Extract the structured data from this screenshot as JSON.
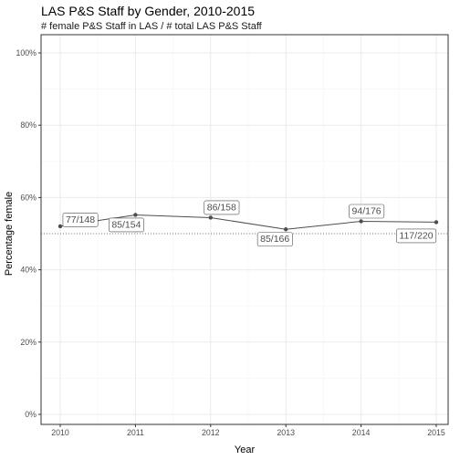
{
  "chart_data": {
    "type": "line",
    "title": "LAS P&S Staff by Gender, 2010-2015",
    "subtitle": "# female P&S Staff in LAS / # total LAS P&S Staff",
    "xlabel": "Year",
    "ylabel": "Percentage female",
    "x": [
      2010,
      2011,
      2012,
      2013,
      2014,
      2015
    ],
    "values": [
      0.5203,
      0.5519,
      0.5443,
      0.512,
      0.5341,
      0.5318
    ],
    "labels": [
      "77/148",
      "85/154",
      "86/158",
      "85/166",
      "94/176",
      "117/220"
    ],
    "x_ticks": [
      "2010",
      "2011",
      "2012",
      "2013",
      "2014",
      "2015"
    ],
    "y_ticks": [
      "0%",
      "20%",
      "40%",
      "60%",
      "80%",
      "100%"
    ],
    "ylim": [
      0,
      1
    ],
    "reference_line": {
      "value": 0.5,
      "style": "dotted"
    },
    "grid": true,
    "colors": {
      "line": "#4d4d4d",
      "point": "#4d4d4d",
      "grid_major": "#ebebeb",
      "grid_minor": "#f5f5f5",
      "panel_border": "#333333"
    }
  }
}
